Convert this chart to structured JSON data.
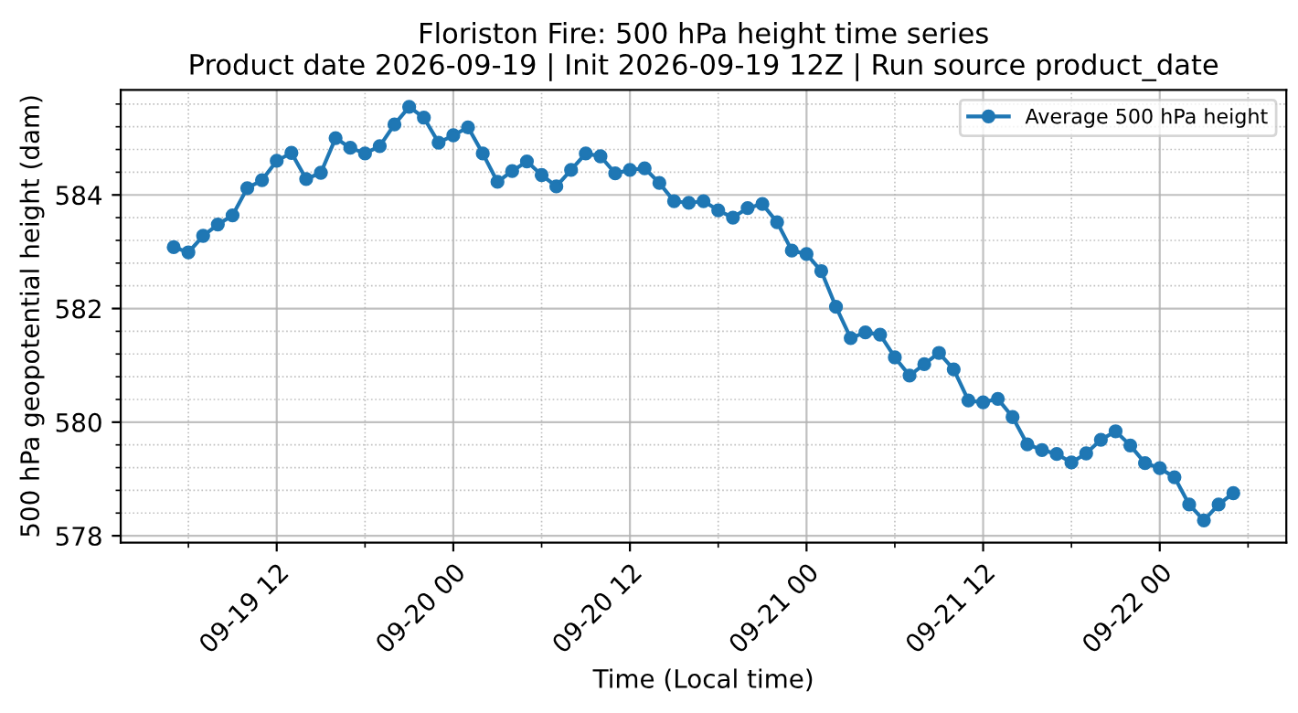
{
  "chart_data": {
    "type": "line",
    "title": "Floriston Fire: 500 hPa height time series\nProduct date 2026-09-19 | Init 2026-09-19 12Z | Run source product_date",
    "xlabel": "Time (Local time)",
    "ylabel": "500 hPa geopotential height (dam)",
    "x": [
      "2026-09-19T05:00",
      "2026-09-19T06:00",
      "2026-09-19T07:00",
      "2026-09-19T08:00",
      "2026-09-19T09:00",
      "2026-09-19T10:00",
      "2026-09-19T11:00",
      "2026-09-19T12:00",
      "2026-09-19T13:00",
      "2026-09-19T14:00",
      "2026-09-19T15:00",
      "2026-09-19T16:00",
      "2026-09-19T17:00",
      "2026-09-19T18:00",
      "2026-09-19T19:00",
      "2026-09-19T20:00",
      "2026-09-19T21:00",
      "2026-09-19T22:00",
      "2026-09-19T23:00",
      "2026-09-20T00:00",
      "2026-09-20T01:00",
      "2026-09-20T02:00",
      "2026-09-20T03:00",
      "2026-09-20T04:00",
      "2026-09-20T05:00",
      "2026-09-20T06:00",
      "2026-09-20T07:00",
      "2026-09-20T08:00",
      "2026-09-20T09:00",
      "2026-09-20T10:00",
      "2026-09-20T11:00",
      "2026-09-20T12:00",
      "2026-09-20T13:00",
      "2026-09-20T14:00",
      "2026-09-20T15:00",
      "2026-09-20T16:00",
      "2026-09-20T17:00",
      "2026-09-20T18:00",
      "2026-09-20T19:00",
      "2026-09-20T20:00",
      "2026-09-20T21:00",
      "2026-09-20T22:00",
      "2026-09-20T23:00",
      "2026-09-21T00:00",
      "2026-09-21T01:00",
      "2026-09-21T02:00",
      "2026-09-21T03:00",
      "2026-09-21T04:00",
      "2026-09-21T05:00",
      "2026-09-21T06:00",
      "2026-09-21T07:00",
      "2026-09-21T08:00",
      "2026-09-21T09:00",
      "2026-09-21T10:00",
      "2026-09-21T11:00",
      "2026-09-21T12:00",
      "2026-09-21T13:00",
      "2026-09-21T14:00",
      "2026-09-21T15:00",
      "2026-09-21T16:00",
      "2026-09-21T17:00",
      "2026-09-21T18:00",
      "2026-09-21T19:00",
      "2026-09-21T20:00",
      "2026-09-21T21:00",
      "2026-09-21T22:00",
      "2026-09-21T23:00",
      "2026-09-22T00:00",
      "2026-09-22T01:00",
      "2026-09-22T02:00",
      "2026-09-22T03:00",
      "2026-09-22T04:00",
      "2026-09-22T05:00"
    ],
    "series": [
      {
        "name": "Average 500 hPa height",
        "color": "#1f77b4",
        "values": [
          583.08,
          582.99,
          583.28,
          583.48,
          583.64,
          584.12,
          584.26,
          584.6,
          584.74,
          584.28,
          584.39,
          585.0,
          584.83,
          584.73,
          584.86,
          585.24,
          585.55,
          585.36,
          584.92,
          585.05,
          585.19,
          584.73,
          584.23,
          584.42,
          584.59,
          584.35,
          584.15,
          584.44,
          584.73,
          584.68,
          584.38,
          584.44,
          584.47,
          584.21,
          583.89,
          583.86,
          583.89,
          583.73,
          583.6,
          583.77,
          583.84,
          583.52,
          583.02,
          582.96,
          582.66,
          582.03,
          581.48,
          581.58,
          581.54,
          581.14,
          580.82,
          581.02,
          581.22,
          580.93,
          580.38,
          580.35,
          580.41,
          580.09,
          579.61,
          579.51,
          579.44,
          579.29,
          579.45,
          579.69,
          579.84,
          579.59,
          579.28,
          579.19,
          579.03,
          578.55,
          578.27,
          578.55,
          578.75
        ]
      }
    ],
    "xlim": [
      "2026-09-19T01:24",
      "2026-09-22T08:36"
    ],
    "xticks": [
      {
        "value": "2026-09-19T06:00",
        "label": null
      },
      {
        "value": "2026-09-19T12:00",
        "label": "09-19 12"
      },
      {
        "value": "2026-09-19T18:00",
        "label": null
      },
      {
        "value": "2026-09-20T00:00",
        "label": "09-20 00"
      },
      {
        "value": "2026-09-20T06:00",
        "label": null
      },
      {
        "value": "2026-09-20T12:00",
        "label": "09-20 12"
      },
      {
        "value": "2026-09-20T18:00",
        "label": null
      },
      {
        "value": "2026-09-21T00:00",
        "label": "09-21 00"
      },
      {
        "value": "2026-09-21T06:00",
        "label": null
      },
      {
        "value": "2026-09-21T12:00",
        "label": "09-21 12"
      },
      {
        "value": "2026-09-21T18:00",
        "label": null
      },
      {
        "value": "2026-09-22T00:00",
        "label": "09-22 00"
      },
      {
        "value": "2026-09-22T06:00",
        "label": null
      }
    ],
    "ylim": [
      577.88,
      585.85
    ],
    "yticks": [
      578,
      {
        "value": 578.4,
        "label": null
      },
      {
        "value": 578.8,
        "label": null
      },
      {
        "value": 579.2,
        "label": null
      },
      {
        "value": 579.6,
        "label": null
      },
      580,
      {
        "value": 580.4,
        "label": null
      },
      {
        "value": 580.8,
        "label": null
      },
      {
        "value": 581.2,
        "label": null
      },
      {
        "value": 581.6,
        "label": null
      },
      582,
      {
        "value": 582.4,
        "label": null
      },
      {
        "value": 582.8,
        "label": null
      },
      {
        "value": 583.2,
        "label": null
      },
      {
        "value": 583.6,
        "label": null
      },
      584,
      {
        "value": 584.4,
        "label": null
      },
      {
        "value": 584.8,
        "label": null
      },
      {
        "value": 585.2,
        "label": null
      },
      {
        "value": 585.6,
        "label": null
      }
    ],
    "grid": true,
    "legend": "top right",
    "marker": "circle",
    "line_style": "solid"
  }
}
